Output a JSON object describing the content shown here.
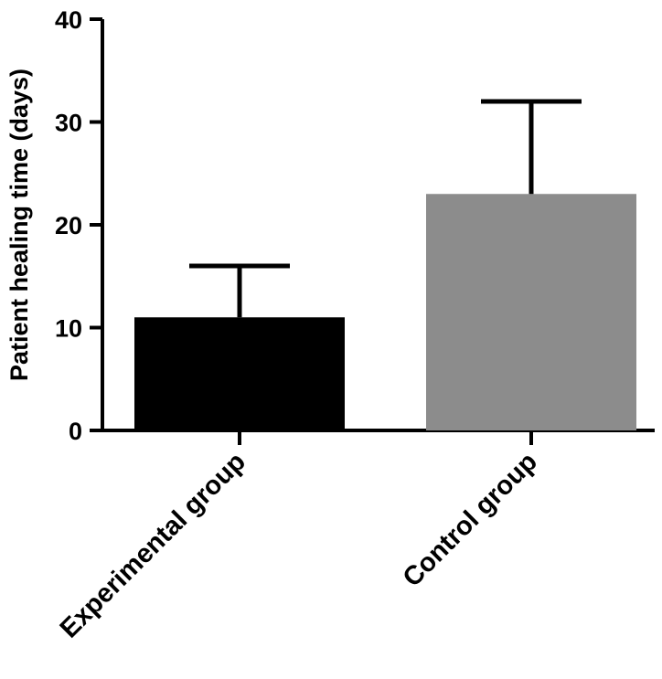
{
  "chart_data": {
    "type": "bar",
    "categories": [
      "Experimental group",
      "Control group"
    ],
    "series": [
      {
        "values": [
          11,
          23
        ],
        "errors": [
          5,
          9
        ],
        "colors": [
          "#000000",
          "#8c8c8c"
        ]
      }
    ],
    "ylabel": "Patient healing time (days)",
    "xlabel": "",
    "ylim": [
      0,
      40
    ],
    "yticks": [
      0,
      10,
      20,
      30,
      40
    ],
    "grid": false,
    "error_bars": "upper"
  }
}
